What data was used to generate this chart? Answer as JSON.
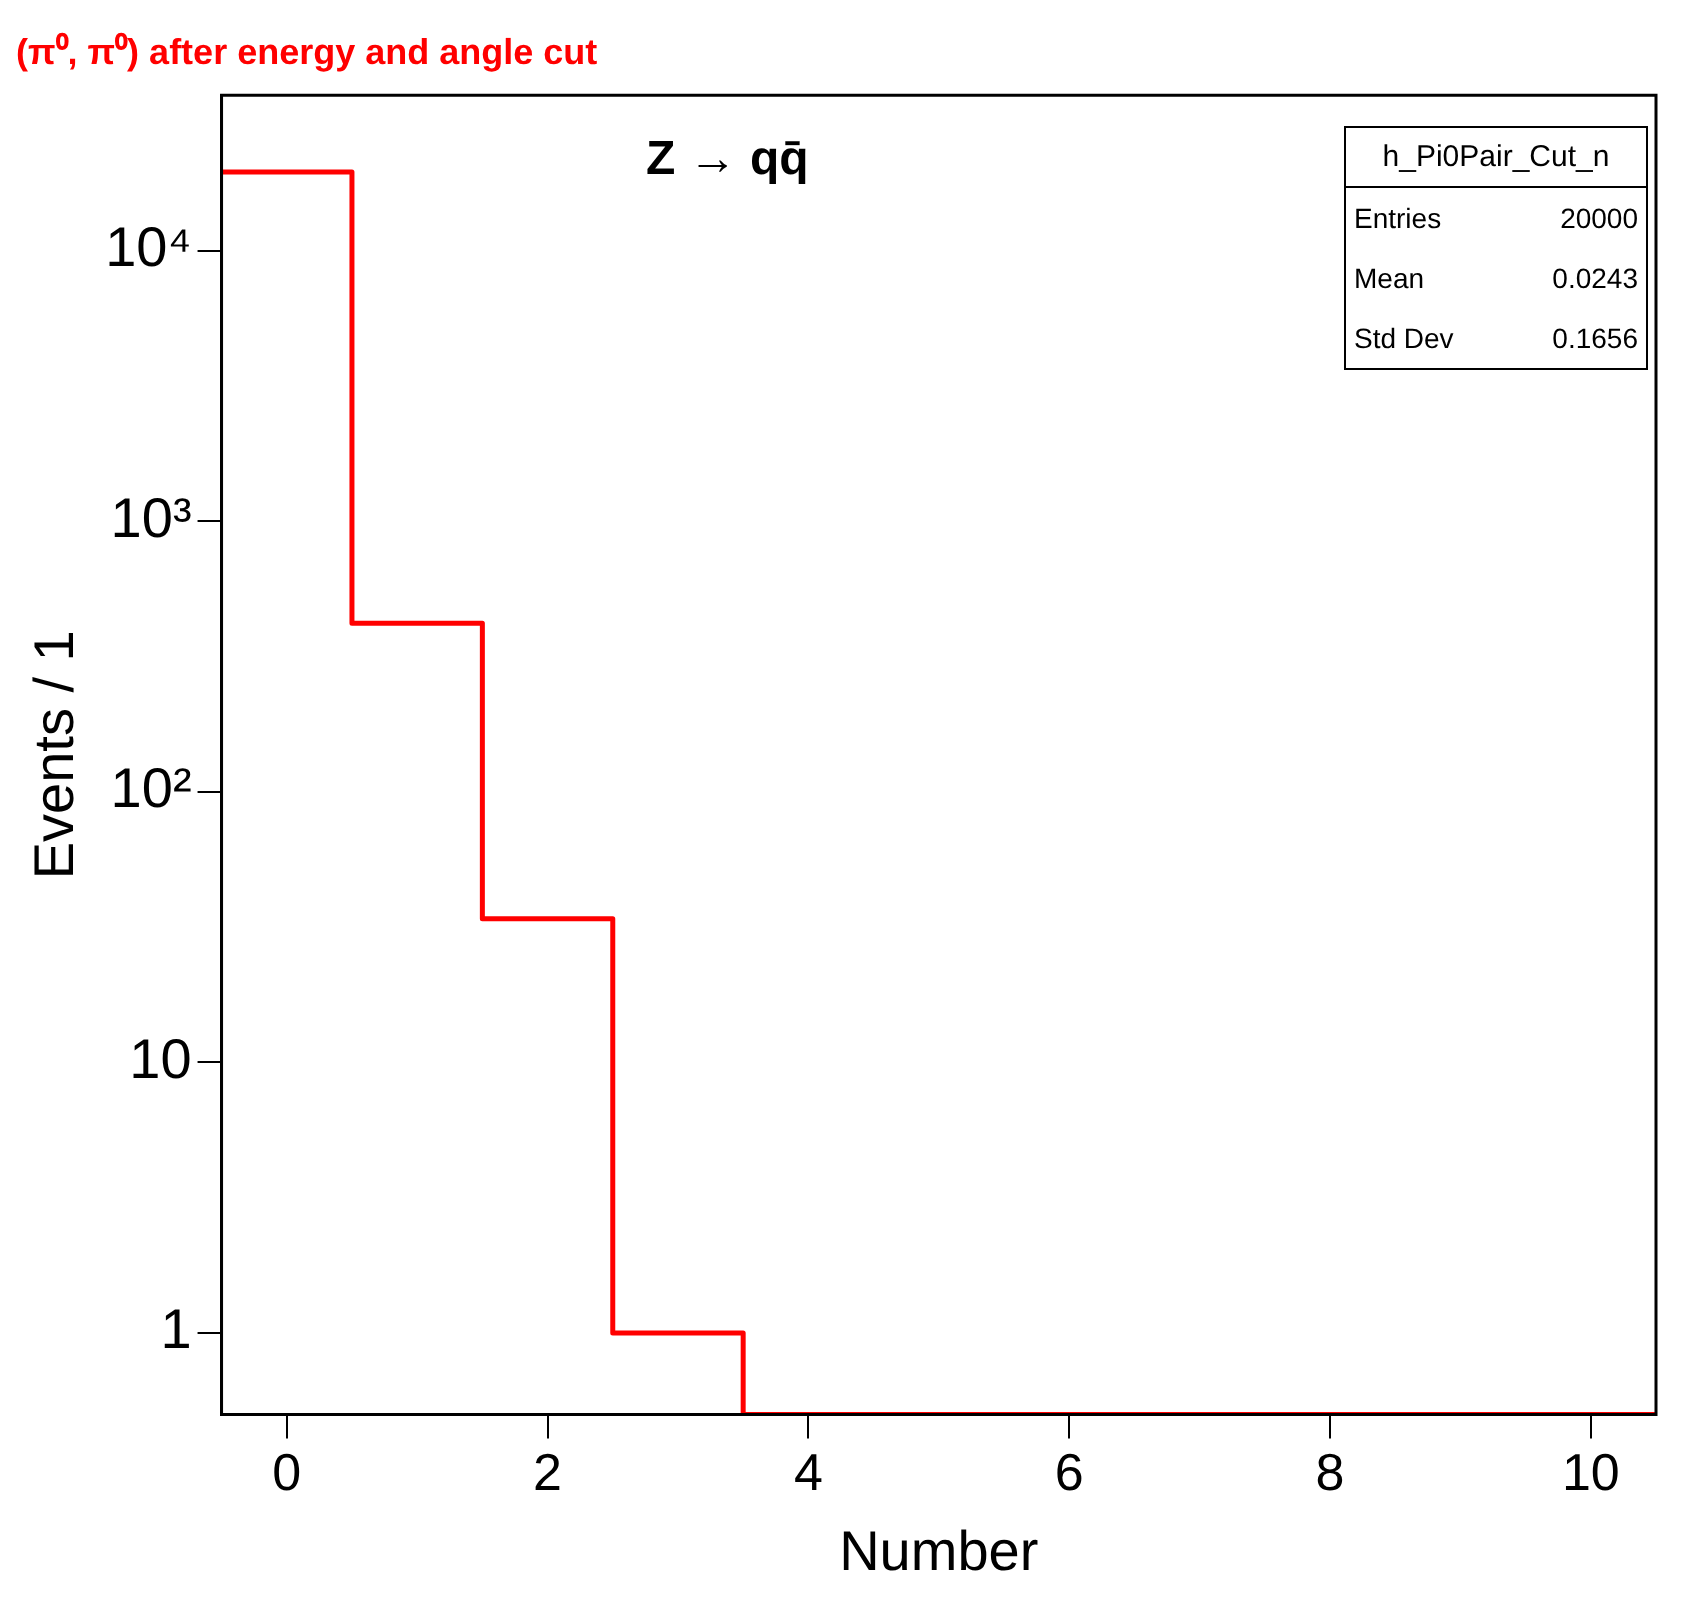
{
  "chart_data": {
    "type": "histogram",
    "title": "(π⁰, π⁰) after energy and angle cut",
    "xlabel": "Number",
    "ylabel": "Events / 1",
    "bins": [
      -0.5,
      0.5,
      1.5,
      2.5,
      3.5,
      4.5,
      5.5,
      6.5,
      7.5,
      8.5,
      9.5,
      10.5
    ],
    "values": [
      19545,
      420,
      34,
      1,
      null,
      null,
      null,
      null,
      null,
      null,
      null
    ],
    "color": "#ff0000",
    "log": "y",
    "grid": false,
    "legend": false,
    "xlim": [
      -0.5,
      10.5
    ],
    "xticks": [
      0,
      2,
      4,
      6,
      8,
      10
    ],
    "ylim": [
      0.5,
      37600
    ],
    "yticks": [
      1,
      10,
      {
        "value": 100,
        "label": "10²"
      },
      {
        "value": 1000,
        "label": "10³"
      },
      {
        "value": 10000,
        "label": "10⁴"
      }
    ],
    "annotations": [
      "Z → qq̄",
      "h_Pi0Pair_Cut_n",
      "Entries",
      "20000",
      "Mean",
      "0.0243",
      "Std Dev",
      "0.1656"
    ]
  }
}
